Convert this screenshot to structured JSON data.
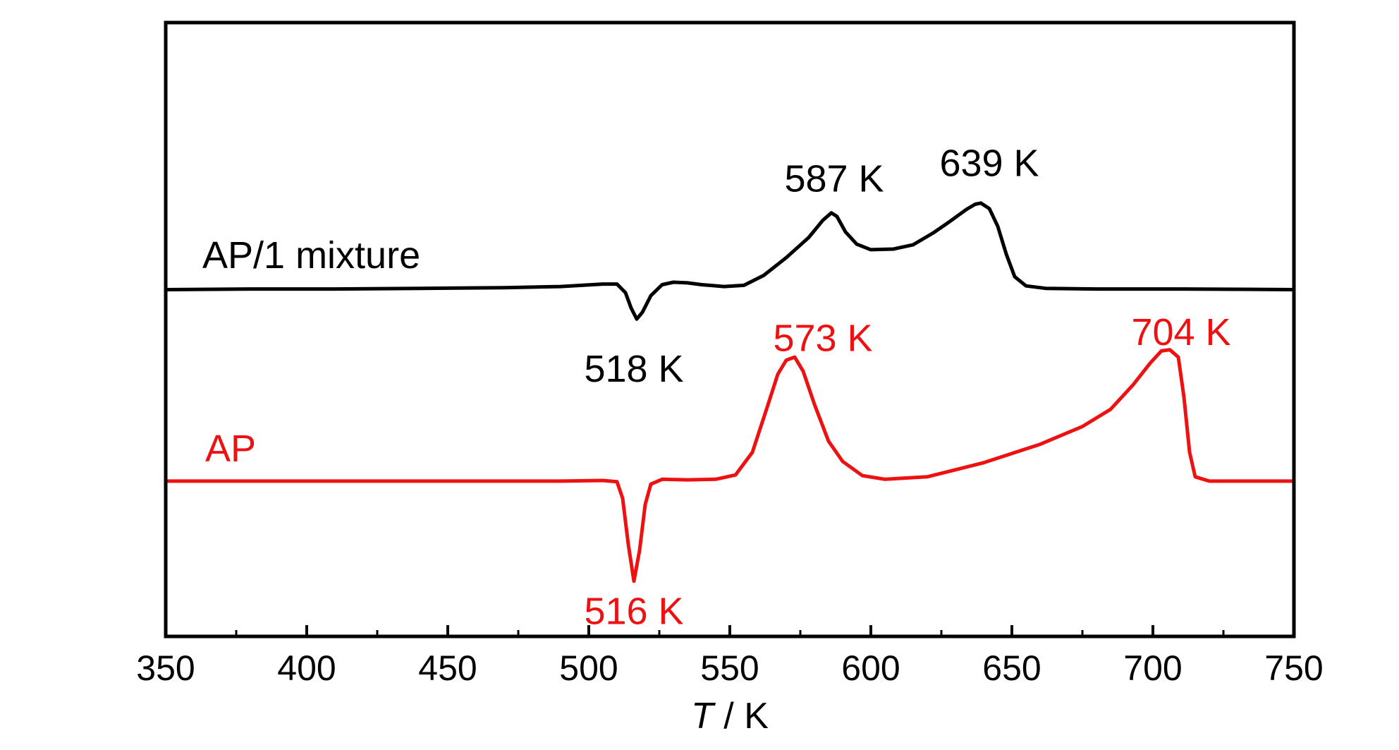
{
  "chart_data": {
    "type": "line",
    "xlabel_italic": "T",
    "xlabel_rest": " / K",
    "ylabel": "",
    "xlim": [
      350,
      750
    ],
    "ylim": [
      0,
      1
    ],
    "x_ticks": [
      350,
      400,
      450,
      500,
      550,
      600,
      650,
      700,
      750
    ],
    "grid": false,
    "y_ticks_shown": false,
    "series": [
      {
        "name": "AP/1 mixture",
        "color": "#000000",
        "points": [
          [
            350,
            0.565
          ],
          [
            380,
            0.566
          ],
          [
            410,
            0.566
          ],
          [
            440,
            0.567
          ],
          [
            470,
            0.568
          ],
          [
            490,
            0.57
          ],
          [
            505,
            0.574
          ],
          [
            510,
            0.574
          ],
          [
            513,
            0.56
          ],
          [
            515,
            0.535
          ],
          [
            517,
            0.517
          ],
          [
            519,
            0.528
          ],
          [
            522,
            0.555
          ],
          [
            526,
            0.573
          ],
          [
            530,
            0.577
          ],
          [
            535,
            0.576
          ],
          [
            540,
            0.573
          ],
          [
            548,
            0.57
          ],
          [
            555,
            0.572
          ],
          [
            562,
            0.588
          ],
          [
            570,
            0.617
          ],
          [
            578,
            0.65
          ],
          [
            583,
            0.678
          ],
          [
            586,
            0.69
          ],
          [
            588,
            0.684
          ],
          [
            591,
            0.659
          ],
          [
            595,
            0.639
          ],
          [
            600,
            0.63
          ],
          [
            608,
            0.631
          ],
          [
            615,
            0.638
          ],
          [
            622,
            0.657
          ],
          [
            628,
            0.676
          ],
          [
            634,
            0.696
          ],
          [
            637,
            0.704
          ],
          [
            639,
            0.706
          ],
          [
            642,
            0.697
          ],
          [
            645,
            0.668
          ],
          [
            648,
            0.623
          ],
          [
            651,
            0.586
          ],
          [
            655,
            0.571
          ],
          [
            662,
            0.567
          ],
          [
            680,
            0.566
          ],
          [
            710,
            0.566
          ],
          [
            750,
            0.565
          ]
        ]
      },
      {
        "name": "AP",
        "color": "#ee1111",
        "points": [
          [
            350,
            0.253
          ],
          [
            400,
            0.253
          ],
          [
            450,
            0.253
          ],
          [
            490,
            0.253
          ],
          [
            505,
            0.254
          ],
          [
            510,
            0.252
          ],
          [
            512,
            0.225
          ],
          [
            514,
            0.15
          ],
          [
            516,
            0.09
          ],
          [
            518,
            0.14
          ],
          [
            520,
            0.215
          ],
          [
            522,
            0.248
          ],
          [
            526,
            0.256
          ],
          [
            535,
            0.255
          ],
          [
            545,
            0.256
          ],
          [
            552,
            0.263
          ],
          [
            558,
            0.3
          ],
          [
            563,
            0.37
          ],
          [
            567,
            0.427
          ],
          [
            570,
            0.45
          ],
          [
            573,
            0.455
          ],
          [
            576,
            0.432
          ],
          [
            580,
            0.378
          ],
          [
            585,
            0.318
          ],
          [
            590,
            0.285
          ],
          [
            597,
            0.262
          ],
          [
            605,
            0.256
          ],
          [
            620,
            0.26
          ],
          [
            640,
            0.283
          ],
          [
            660,
            0.313
          ],
          [
            675,
            0.342
          ],
          [
            685,
            0.37
          ],
          [
            693,
            0.41
          ],
          [
            699,
            0.445
          ],
          [
            703,
            0.465
          ],
          [
            706,
            0.467
          ],
          [
            709,
            0.455
          ],
          [
            711,
            0.39
          ],
          [
            713,
            0.3
          ],
          [
            715,
            0.26
          ],
          [
            720,
            0.253
          ],
          [
            735,
            0.253
          ],
          [
            750,
            0.253
          ]
        ]
      }
    ],
    "series_labels": [
      {
        "text": "AP/1 mixture",
        "x": 363,
        "y": 0.6,
        "color": "#000000"
      },
      {
        "text": "AP",
        "x": 364,
        "y": 0.285,
        "color": "#ee1111"
      }
    ],
    "annotations": [
      {
        "text": "587 K",
        "x": 587,
        "y": 0.725,
        "color": "#000000"
      },
      {
        "text": "639 K",
        "x": 642,
        "y": 0.75,
        "color": "#000000"
      },
      {
        "text": "518 K",
        "x": 516,
        "y": 0.415,
        "color": "#000000"
      },
      {
        "text": "573 K",
        "x": 583,
        "y": 0.465,
        "color": "#ee1111"
      },
      {
        "text": "704 K",
        "x": 710,
        "y": 0.475,
        "color": "#ee1111"
      },
      {
        "text": "516 K",
        "x": 516,
        "y": 0.02,
        "color": "#ee1111"
      }
    ]
  }
}
